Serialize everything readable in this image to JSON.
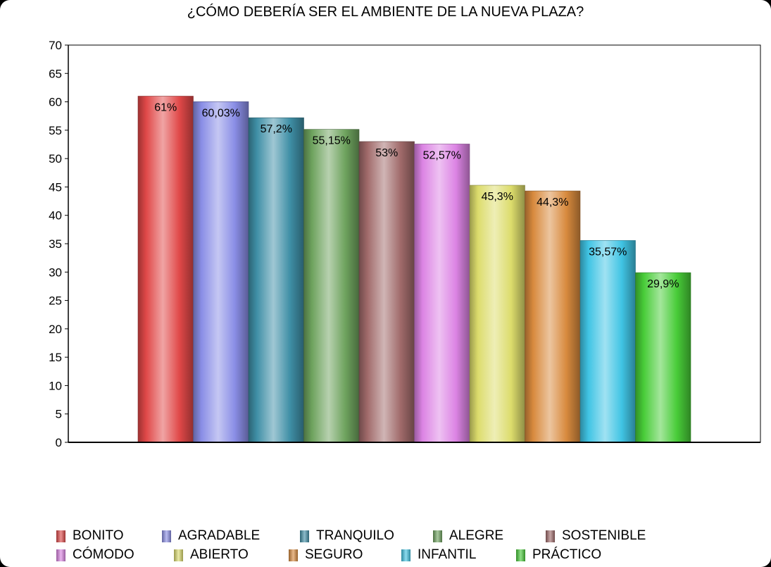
{
  "chart_data": {
    "type": "bar",
    "title": "¿CÓMO DEBERÍA SER EL AMBIENTE DE LA NUEVA PLAZA?",
    "xlabel": "",
    "ylabel": "",
    "ylim": [
      0,
      70
    ],
    "yticks": [
      0,
      5,
      10,
      15,
      20,
      25,
      30,
      35,
      40,
      45,
      50,
      55,
      60,
      65,
      70
    ],
    "grid": false,
    "legend_position": "bottom",
    "series": [
      {
        "name": "BONITO",
        "value": 61,
        "label": "61%",
        "color": "#e04848"
      },
      {
        "name": "AGRADABLE",
        "value": 60.03,
        "label": "60,03%",
        "color": "#8a8ee6"
      },
      {
        "name": "TRANQUILO",
        "value": 57.2,
        "label": "57,2%",
        "color": "#3f8fa6"
      },
      {
        "name": "ALEGRE",
        "value": 55.15,
        "label": "55,15%",
        "color": "#6ea35e"
      },
      {
        "name": "SOSTENIBLE",
        "value": 53,
        "label": "53%",
        "color": "#a06a6a"
      },
      {
        "name": "CÓMODO",
        "value": 52.57,
        "label": "52,57%",
        "color": "#dc84e4"
      },
      {
        "name": "ABIERTO",
        "value": 45.3,
        "label": "45,3%",
        "color": "#dcdc6c"
      },
      {
        "name": "SEGURO",
        "value": 44.3,
        "label": "44,3%",
        "color": "#d88a3e"
      },
      {
        "name": "INFANTIL",
        "value": 35.57,
        "label": "35,57%",
        "color": "#40c4e4"
      },
      {
        "name": "PRÁCTICO",
        "value": 29.9,
        "label": "29,9%",
        "color": "#48cc38"
      }
    ]
  }
}
